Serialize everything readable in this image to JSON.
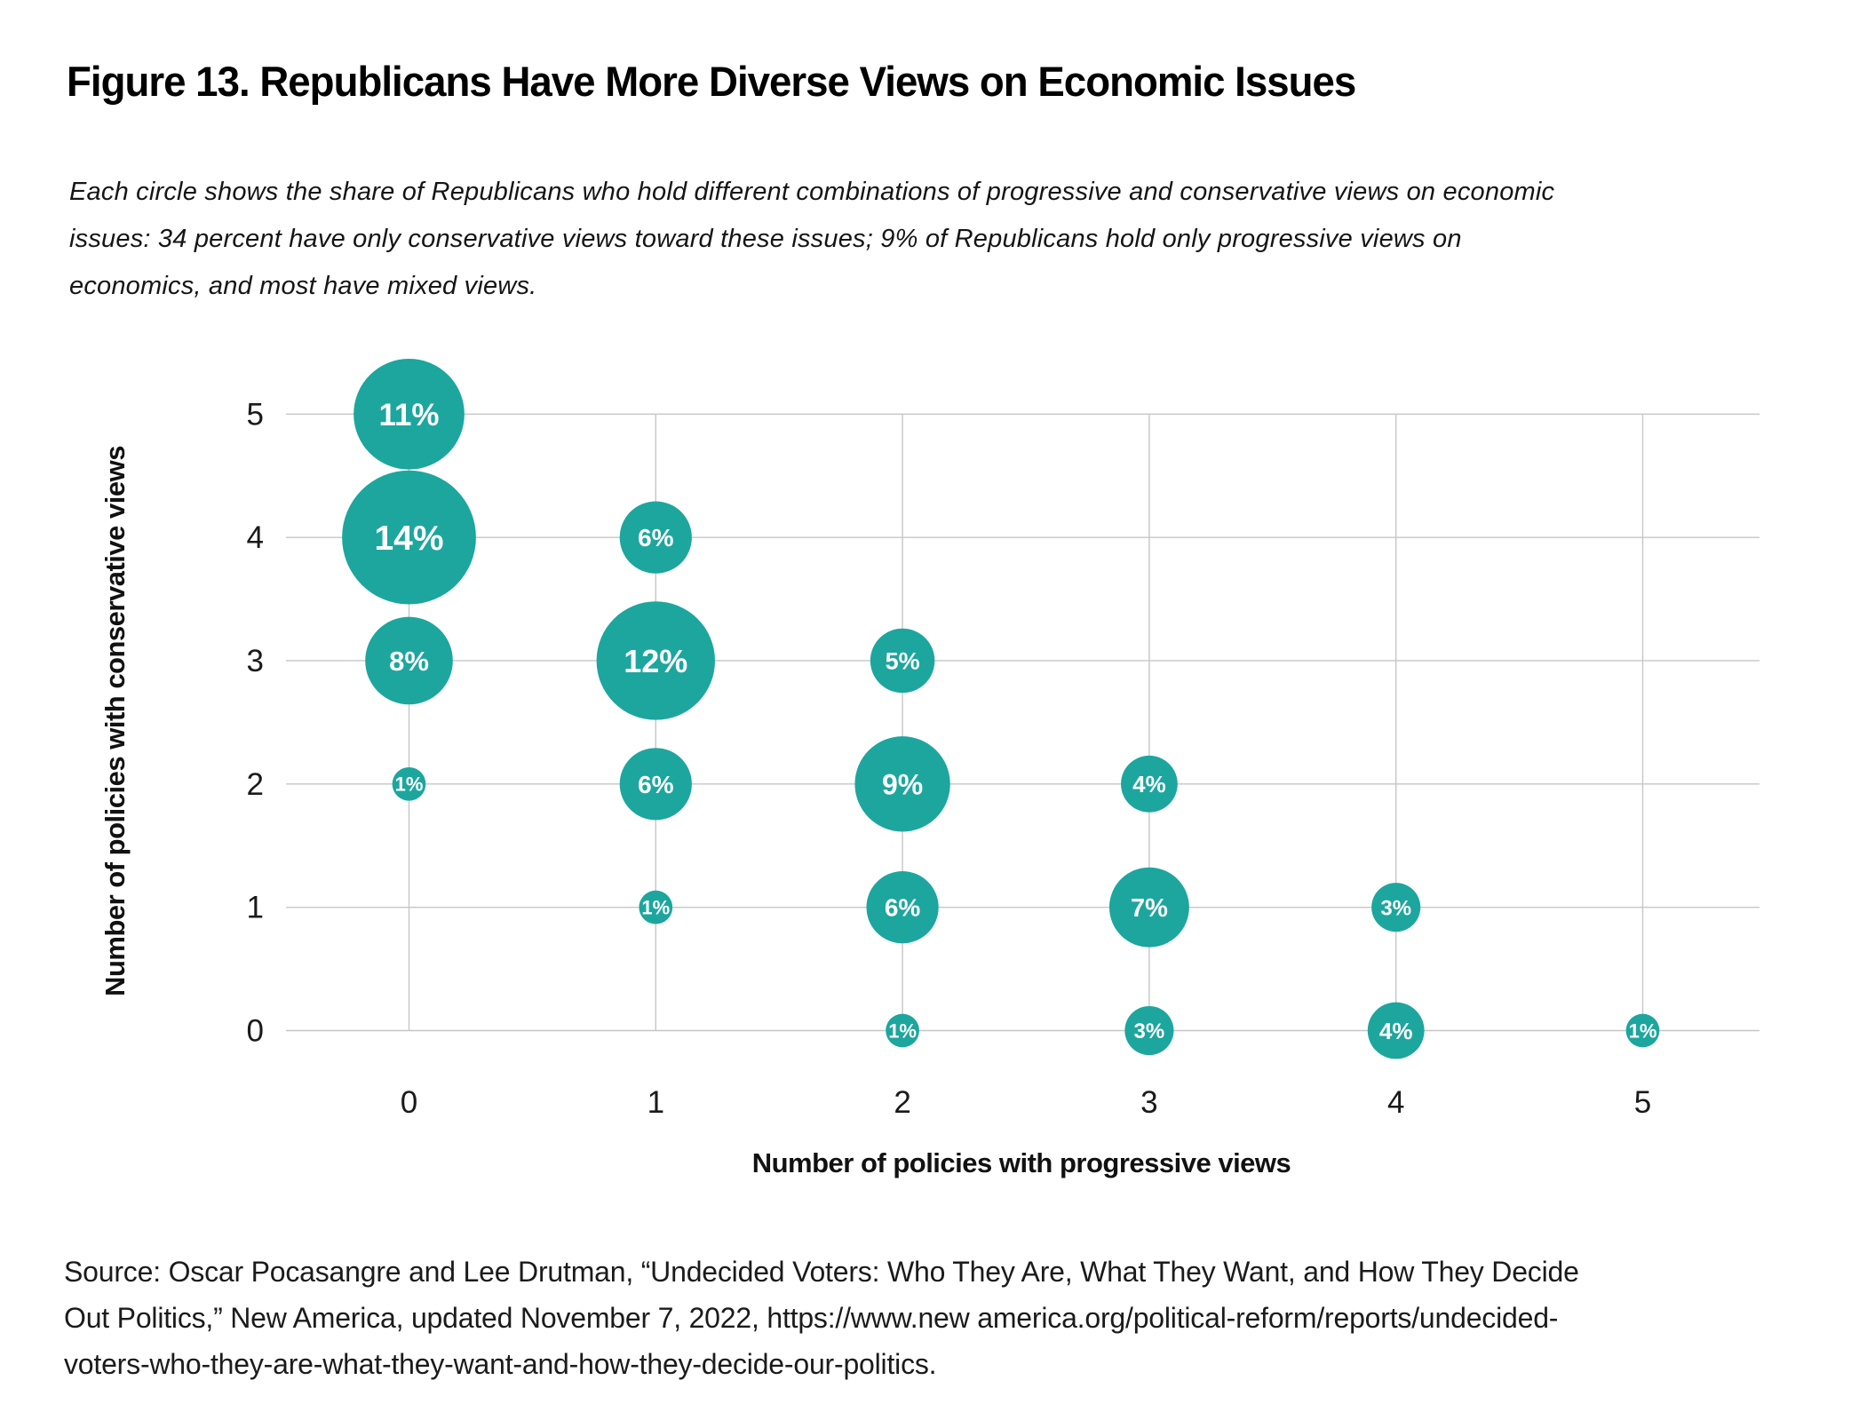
{
  "figure": {
    "title": "Figure 13. Republicans Have More Diverse Views on Economic Issues",
    "subtitle_lines": [
      "Each circle shows the share of Republicans who hold different combinations of progressive and conservative views on economic",
      "issues: 34 percent have only conservative views toward these issues; 9% of Republicans hold only progressive views on",
      "economics, and most have mixed views."
    ],
    "source_lines": [
      "Source: Oscar Pocasangre and Lee Drutman, “Undecided Voters: Who They Are, What They Want, and How They Decide",
      "Out Politics,” New America, updated November 7, 2022, https://www.new america.org/political-reform/reports/undecided-",
      "voters-who-they-are-what-they-want-and-how-they-decide-our-politics."
    ]
  },
  "chart_data": {
    "type": "scatter",
    "subtype": "bubble",
    "title": "",
    "xlabel": "Number of policies with progressive views",
    "ylabel": "Number of policies with conservative views",
    "x_ticks": [
      "0",
      "1",
      "2",
      "3",
      "4",
      "5"
    ],
    "y_ticks": [
      "0",
      "1",
      "2",
      "3",
      "4",
      "5"
    ],
    "xlim": [
      -0.5,
      5.5
    ],
    "ylim": [
      -0.5,
      5.5
    ],
    "grid": true,
    "legend": false,
    "colors": {
      "bubble": "#1CA69E",
      "bubble_label": "#ffffff",
      "gridline": "#c6c6c6",
      "tick_label": "#1a1a1a",
      "axis_title": "#111111"
    },
    "value_unit": "percent of Republicans",
    "points": [
      {
        "x": 0,
        "y": 5,
        "value": 11,
        "label": "11%"
      },
      {
        "x": 0,
        "y": 4,
        "value": 14,
        "label": "14%"
      },
      {
        "x": 0,
        "y": 3,
        "value": 8,
        "label": "8%"
      },
      {
        "x": 0,
        "y": 2,
        "value": 1,
        "label": "1%"
      },
      {
        "x": 1,
        "y": 4,
        "value": 6,
        "label": "6%"
      },
      {
        "x": 1,
        "y": 3,
        "value": 12,
        "label": "12%"
      },
      {
        "x": 1,
        "y": 2,
        "value": 6,
        "label": "6%"
      },
      {
        "x": 1,
        "y": 1,
        "value": 1,
        "label": "1%"
      },
      {
        "x": 2,
        "y": 3,
        "value": 5,
        "label": "5%"
      },
      {
        "x": 2,
        "y": 2,
        "value": 9,
        "label": "9%"
      },
      {
        "x": 2,
        "y": 1,
        "value": 6,
        "label": "6%"
      },
      {
        "x": 2,
        "y": 0,
        "value": 1,
        "label": "1%"
      },
      {
        "x": 3,
        "y": 2,
        "value": 4,
        "label": "4%"
      },
      {
        "x": 3,
        "y": 1,
        "value": 7,
        "label": "7%"
      },
      {
        "x": 3,
        "y": 0,
        "value": 3,
        "label": "3%"
      },
      {
        "x": 4,
        "y": 1,
        "value": 3,
        "label": "3%"
      },
      {
        "x": 4,
        "y": 0,
        "value": 4,
        "label": "4%"
      },
      {
        "x": 5,
        "y": 0,
        "value": 1,
        "label": "1%"
      }
    ]
  }
}
